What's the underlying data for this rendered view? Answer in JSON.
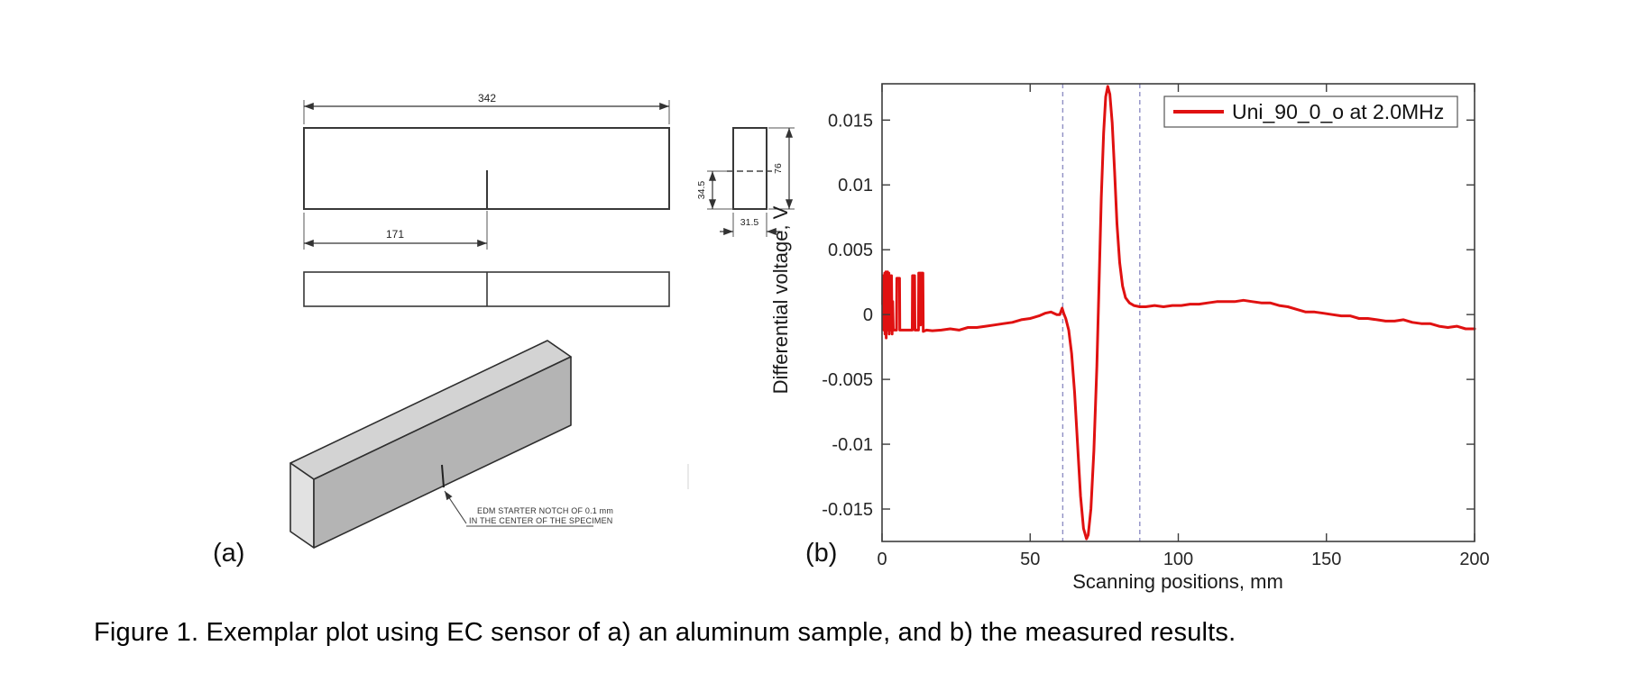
{
  "figure": {
    "caption": "Figure 1. Exemplar plot using EC sensor of a) an aluminum sample, and b) the measured results.",
    "panel_a_label": "(a)",
    "panel_b_label": "(b)"
  },
  "drawing": {
    "dim_length": "342",
    "dim_half_length": "171",
    "dim_notch_offset": "34.5",
    "dim_height": "76",
    "dim_width": "31.5",
    "notch_note_line1": "EDM STARTER NOTCH OF 0.1 mm",
    "notch_note_line2": "IN THE CENTER OF THE SPECIMEN"
  },
  "chart_data": {
    "type": "line",
    "title": "",
    "xlabel": "Scanning positions, mm",
    "ylabel": "Differential voltage, V",
    "xlim": [
      0,
      200
    ],
    "ylim": [
      -0.0175,
      0.0178
    ],
    "x_ticks": [
      0,
      50,
      100,
      150,
      200
    ],
    "x_tick_labels": [
      "0",
      "50",
      "100",
      "150",
      "200"
    ],
    "y_ticks": [
      0.015,
      0.01,
      0.005,
      0,
      -0.005,
      -0.01,
      -0.015
    ],
    "y_tick_labels": [
      "0.015",
      "0.01",
      "0.005",
      "0",
      "-0.005",
      "-0.01",
      "-0.015"
    ],
    "grid": false,
    "legend": {
      "position": "top-right",
      "entries": [
        {
          "label": "Uni_90_0_o at 2.0MHz",
          "color": "#e01111"
        }
      ]
    },
    "vlines": {
      "x": [
        61,
        87
      ],
      "style": "dashed",
      "color": "#8f8fc4"
    },
    "series": [
      {
        "name": "Uni_90_0_o at 2.0MHz",
        "color": "#e01111",
        "points": [
          [
            0.2,
            0.0008
          ],
          [
            0.3,
            0.003
          ],
          [
            0.4,
            -0.0008
          ],
          [
            0.5,
            0.0025
          ],
          [
            0.6,
            -0.0012
          ],
          [
            0.7,
            0.003
          ],
          [
            0.8,
            0.0002
          ],
          [
            0.9,
            0.0032
          ],
          [
            1.0,
            -0.0015
          ],
          [
            1.1,
            0.0028
          ],
          [
            1.2,
            -0.0008
          ],
          [
            1.3,
            0.0033
          ],
          [
            1.4,
            -0.0018
          ],
          [
            1.5,
            0.0025
          ],
          [
            1.6,
            -0.001
          ],
          [
            1.7,
            0.003
          ],
          [
            1.8,
            -0.0005
          ],
          [
            1.9,
            0.0033
          ],
          [
            2.0,
            -0.0012
          ],
          [
            2.1,
            0.0028
          ],
          [
            2.2,
            -0.0008
          ],
          [
            2.3,
            0.0032
          ],
          [
            2.4,
            -0.0015
          ],
          [
            2.5,
            0.0028
          ],
          [
            2.6,
            -0.0005
          ],
          [
            2.7,
            0.003
          ],
          [
            2.8,
            -0.0012
          ],
          [
            2.9,
            0.0025
          ],
          [
            3.0,
            -0.0008
          ],
          [
            3.2,
            0.003
          ],
          [
            3.4,
            -0.0015
          ],
          [
            3.6,
            0.001
          ],
          [
            3.8,
            -0.0012
          ],
          [
            4.0,
            -0.0012
          ],
          [
            4.9,
            -0.0012
          ],
          [
            5.0,
            0.0028
          ],
          [
            5.9,
            0.0028
          ],
          [
            6.0,
            -0.0012
          ],
          [
            10.2,
            -0.0012
          ],
          [
            10.3,
            0.003
          ],
          [
            11.0,
            0.003
          ],
          [
            11.1,
            -0.0012
          ],
          [
            12.3,
            -0.0012
          ],
          [
            12.4,
            0.0032
          ],
          [
            12.9,
            0.0032
          ],
          [
            13.0,
            -0.0008
          ],
          [
            13.1,
            0.0032
          ],
          [
            13.8,
            0.0032
          ],
          [
            13.9,
            -0.0013
          ],
          [
            15,
            -0.0012
          ],
          [
            17,
            -0.00125
          ],
          [
            20,
            -0.0012
          ],
          [
            23,
            -0.0011
          ],
          [
            26,
            -0.0012
          ],
          [
            29,
            -0.001
          ],
          [
            32,
            -0.001
          ],
          [
            35,
            -0.0009
          ],
          [
            38,
            -0.0008
          ],
          [
            41,
            -0.0007
          ],
          [
            44,
            -0.0006
          ],
          [
            47,
            -0.0004
          ],
          [
            50,
            -0.0003
          ],
          [
            53,
            -0.0001
          ],
          [
            55,
            0.0001
          ],
          [
            57,
            0.0002
          ],
          [
            58,
            0.0001
          ],
          [
            59,
            0.0
          ],
          [
            60,
            0.0
          ],
          [
            60.8,
            0.0005
          ],
          [
            61.3,
            0.0001
          ],
          [
            62,
            -0.0003
          ],
          [
            63,
            -0.0012
          ],
          [
            64,
            -0.003
          ],
          [
            65,
            -0.006
          ],
          [
            66,
            -0.01
          ],
          [
            67,
            -0.014
          ],
          [
            68,
            -0.0165
          ],
          [
            69,
            -0.0173
          ],
          [
            69.6,
            -0.017
          ],
          [
            70.5,
            -0.015
          ],
          [
            71.5,
            -0.0105
          ],
          [
            72.5,
            -0.004
          ],
          [
            73.2,
            0.002
          ],
          [
            74.0,
            0.009
          ],
          [
            74.8,
            0.014
          ],
          [
            75.5,
            0.0168
          ],
          [
            76.2,
            0.0176
          ],
          [
            76.9,
            0.017
          ],
          [
            77.7,
            0.0148
          ],
          [
            78.5,
            0.011
          ],
          [
            79.3,
            0.007
          ],
          [
            80.2,
            0.004
          ],
          [
            81.2,
            0.0022
          ],
          [
            82.2,
            0.0013
          ],
          [
            83.5,
            0.0009
          ],
          [
            85,
            0.0007
          ],
          [
            87,
            0.0006
          ],
          [
            89,
            0.0006
          ],
          [
            92,
            0.0007
          ],
          [
            95,
            0.0006
          ],
          [
            98,
            0.0007
          ],
          [
            101,
            0.0007
          ],
          [
            104,
            0.0008
          ],
          [
            107,
            0.0008
          ],
          [
            110,
            0.0009
          ],
          [
            113,
            0.001
          ],
          [
            116,
            0.001
          ],
          [
            119,
            0.001
          ],
          [
            122,
            0.0011
          ],
          [
            125,
            0.001
          ],
          [
            128,
            0.0009
          ],
          [
            131,
            0.0009
          ],
          [
            134,
            0.0007
          ],
          [
            137,
            0.0006
          ],
          [
            140,
            0.0004
          ],
          [
            143,
            0.0002
          ],
          [
            146,
            0.0002
          ],
          [
            149,
            0.0001
          ],
          [
            152,
            0.0
          ],
          [
            155,
            -0.0001
          ],
          [
            158,
            -0.0001
          ],
          [
            161,
            -0.0003
          ],
          [
            164,
            -0.0003
          ],
          [
            167,
            -0.0004
          ],
          [
            170,
            -0.0005
          ],
          [
            173,
            -0.0005
          ],
          [
            176,
            -0.0004
          ],
          [
            179,
            -0.0006
          ],
          [
            182,
            -0.0007
          ],
          [
            185,
            -0.0007
          ],
          [
            188,
            -0.0009
          ],
          [
            191,
            -0.001
          ],
          [
            194,
            -0.0009
          ],
          [
            197,
            -0.0011
          ],
          [
            200,
            -0.0011
          ]
        ]
      }
    ]
  }
}
